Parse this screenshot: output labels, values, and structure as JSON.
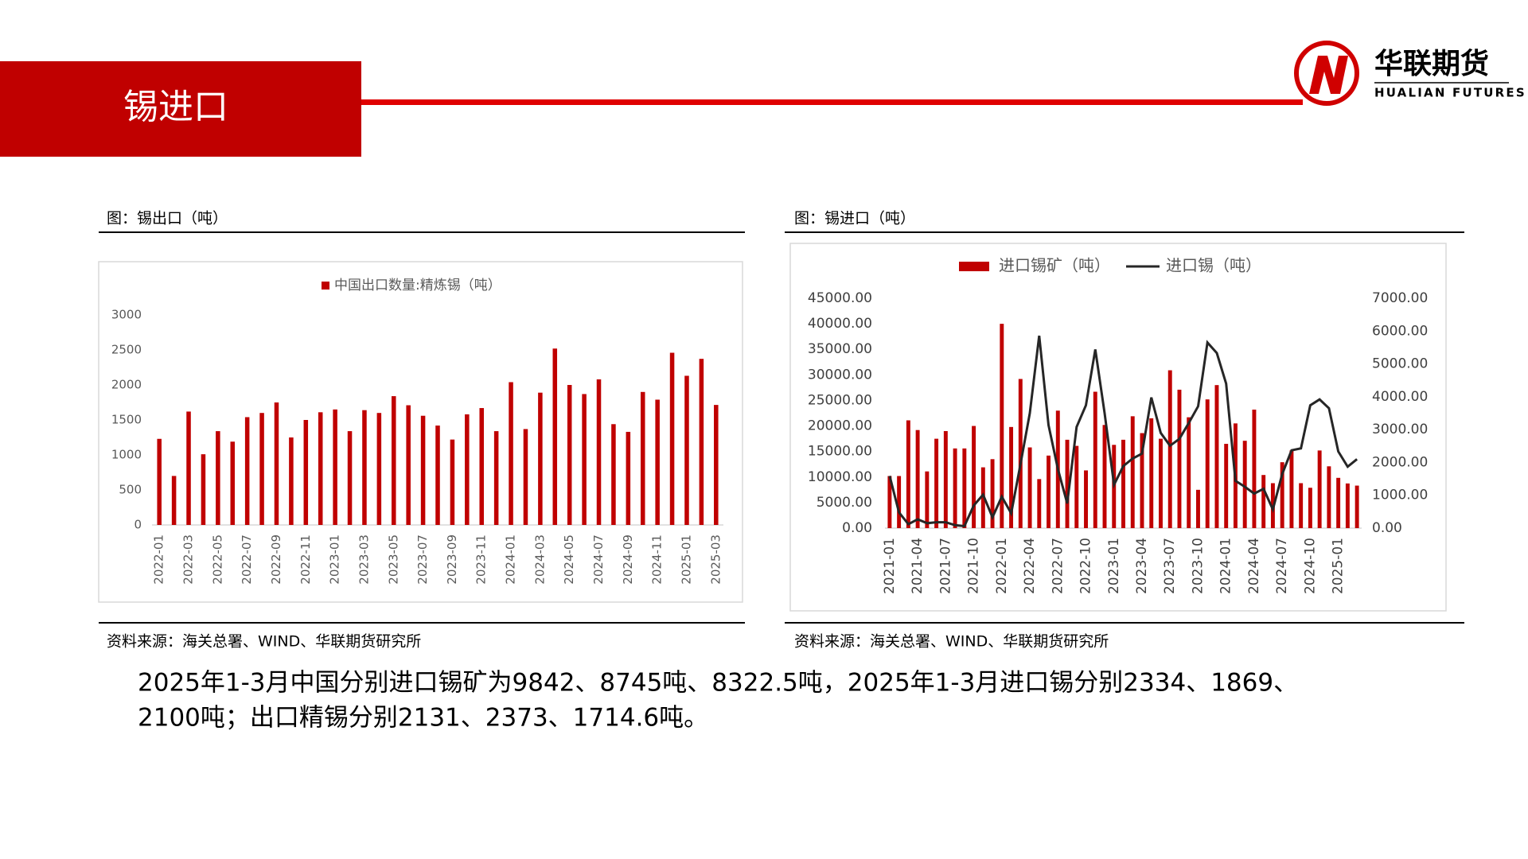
{
  "header": {
    "title": "锡进口",
    "logo_cn": "华联期货",
    "logo_en": "HUALIAN FUTURES"
  },
  "panels": [
    {
      "caption": "图：锡出口（吨）",
      "source": "资料来源：海关总署、WIND、华联期货研究所"
    },
    {
      "caption": "图：锡进口（吨）",
      "source": "资料来源：海关总署、WIND、华联期货研究所"
    }
  ],
  "chart_data": [
    {
      "type": "bar",
      "categories": [
        "2022-01",
        null,
        "2022-03",
        null,
        "2022-05",
        null,
        "2022-07",
        null,
        "2022-09",
        null,
        "2022-11",
        null,
        "2023-01",
        null,
        "2023-03",
        null,
        "2023-05",
        null,
        "2023-07",
        null,
        "2023-09",
        null,
        "2023-11",
        null,
        "2024-01",
        null,
        "2024-03",
        null,
        "2024-05",
        null,
        "2024-07",
        null,
        "2024-09",
        null,
        "2024-11",
        null,
        "2025-01",
        null,
        "2025-03"
      ],
      "series": [
        {
          "name": "中国出口数量:精炼锡（吨）",
          "color": "#c00000",
          "values": [
            1230,
            700,
            1620,
            1010,
            1340,
            1190,
            1540,
            1600,
            1750,
            1250,
            1500,
            1610,
            1650,
            1340,
            1640,
            1600,
            1840,
            1710,
            1560,
            1420,
            1220,
            1580,
            1670,
            1340,
            2040,
            1370,
            1890,
            2520,
            2000,
            1870,
            2080,
            1440,
            1330,
            1900,
            1790,
            2460,
            2131,
            2373,
            1714.6
          ]
        }
      ],
      "ylim": [
        0,
        3000
      ],
      "yticks": [
        0,
        500,
        1000,
        1500,
        2000,
        2500,
        3000
      ],
      "grid": false,
      "legend": "top"
    },
    {
      "type": "combo",
      "categories": [
        "2021-01",
        null,
        null,
        "2021-04",
        null,
        null,
        "2021-07",
        null,
        null,
        "2021-10",
        null,
        null,
        "2022-01",
        null,
        null,
        "2022-04",
        null,
        null,
        "2022-07",
        null,
        null,
        "2022-10",
        null,
        null,
        "2023-01",
        null,
        null,
        "2023-04",
        null,
        null,
        "2023-07",
        null,
        null,
        "2023-10",
        null,
        null,
        "2024-01",
        null,
        null,
        "2024-04",
        null,
        null,
        "2024-07",
        null,
        null,
        "2024-10",
        null,
        null,
        "2025-01",
        null,
        null
      ],
      "series": [
        {
          "name": "进口锡矿（吨）",
          "type": "bar",
          "color": "#c00000",
          "values": [
            10200,
            10200,
            21100,
            19200,
            11100,
            17500,
            19000,
            15600,
            15600,
            20000,
            11900,
            13500,
            40000,
            19800,
            29200,
            15800,
            9600,
            14200,
            23000,
            17300,
            16100,
            11300,
            26700,
            20200,
            16300,
            17300,
            21900,
            18600,
            21500,
            17500,
            30900,
            27100,
            21700,
            7500,
            25200,
            28000,
            16500,
            20500,
            17100,
            23200,
            10400,
            8800,
            12900,
            15200,
            8800,
            7900,
            15200,
            12100,
            9842,
            8745,
            8322.5
          ]
        },
        {
          "name": "进口锡（吨）",
          "type": "line",
          "color": "#262626",
          "axis": "y2",
          "values": [
            1590,
            480,
            120,
            270,
            150,
            180,
            180,
            90,
            60,
            690,
            1020,
            330,
            960,
            450,
            1950,
            3500,
            5860,
            3140,
            1800,
            750,
            3080,
            3740,
            5440,
            3500,
            1320,
            1890,
            2120,
            2270,
            3980,
            2900,
            2510,
            2720,
            3200,
            3710,
            5650,
            5330,
            4400,
            1440,
            1260,
            1050,
            1200,
            570,
            1650,
            2370,
            2430,
            3740,
            3920,
            3650,
            2334,
            1869,
            2100
          ]
        }
      ],
      "ylim": [
        0,
        45000
      ],
      "yticks": [
        {
          "value": 0,
          "label": "0.00"
        },
        {
          "value": 5000,
          "label": "5000.00"
        },
        {
          "value": 10000,
          "label": "10000.00"
        },
        {
          "value": 15000,
          "label": "15000.00"
        },
        {
          "value": 20000,
          "label": "20000.00"
        },
        {
          "value": 25000,
          "label": "25000.00"
        },
        {
          "value": 30000,
          "label": "30000.00"
        },
        {
          "value": 35000,
          "label": "35000.00"
        },
        {
          "value": 40000,
          "label": "40000.00"
        },
        {
          "value": 45000,
          "label": "45000.00"
        }
      ],
      "y2lim": [
        0,
        7000
      ],
      "y2ticks": [
        {
          "value": 0,
          "label": "0.00"
        },
        {
          "value": 1000,
          "label": "1000.00"
        },
        {
          "value": 2000,
          "label": "2000.00"
        },
        {
          "value": 3000,
          "label": "3000.00"
        },
        {
          "value": 4000,
          "label": "4000.00"
        },
        {
          "value": 5000,
          "label": "5000.00"
        },
        {
          "value": 6000,
          "label": "6000.00"
        },
        {
          "value": 7000,
          "label": "7000.00"
        }
      ],
      "grid": false,
      "legend": "top"
    }
  ],
  "summary": [
    "2025年1-3月中国分别进口锡矿为9842、8745吨、8322.5吨，2025年1-3月进口锡分别2334、1869、",
    "2100吨；出口精锡分别2131、2373、1714.6吨。"
  ]
}
